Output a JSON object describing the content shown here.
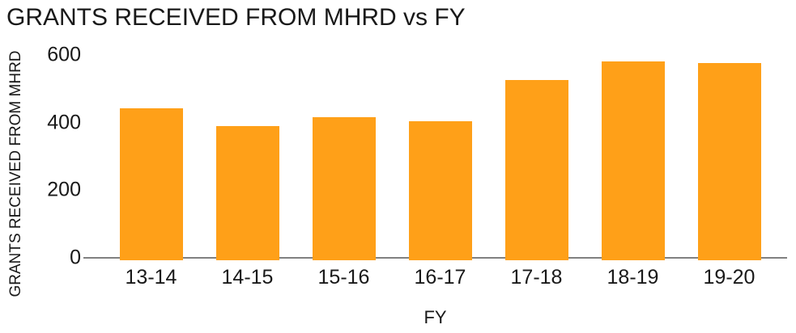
{
  "colors": {
    "bar": "#FFA018",
    "axis_line": "#808080",
    "text": "#191919",
    "background": "#FFFFFF"
  },
  "chart_data": {
    "type": "bar",
    "title": "GRANTS RECEIVED FROM MHRD vs FY",
    "xlabel": "FY",
    "ylabel": "GRANTS RECEIVED FROM MHRD",
    "categories": [
      "13-14",
      "14-15",
      "15-16",
      "16-17",
      "17-18",
      "18-19",
      "19-20"
    ],
    "values": [
      442,
      389,
      417,
      404,
      526,
      580,
      576
    ],
    "yticks": [
      0,
      200,
      400,
      600
    ],
    "ylim": [
      0,
      600
    ],
    "grid": false,
    "legend": false,
    "bar_color": "#FFA018"
  }
}
